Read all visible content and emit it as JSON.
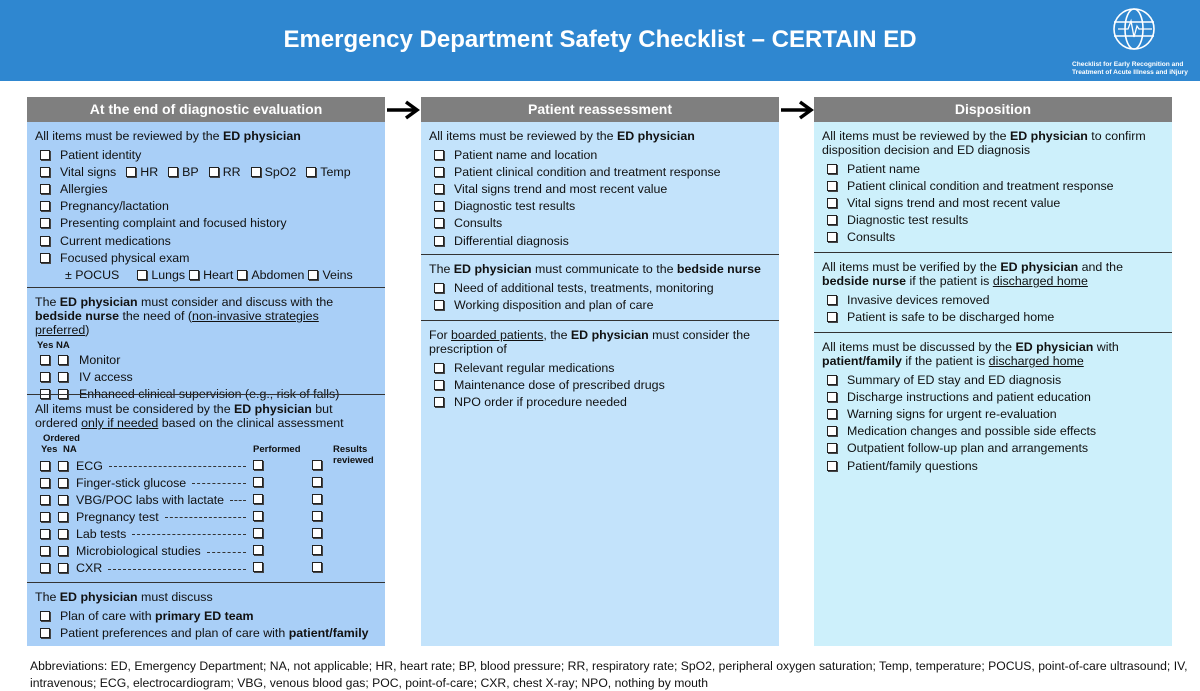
{
  "title": "Emergency Department Safety Checklist – CERTAIN ED",
  "logo": {
    "caption_line1": "Checklist for Early Recognition and",
    "caption_line2": "Treatment of Acute Illness and iNjury"
  },
  "colors": {
    "banner": "#2f87d0",
    "header": "#7f7f7f",
    "col1": "#a9cff7",
    "col2": "#c3e3fb",
    "col3": "#cdf0fb"
  },
  "icons": {
    "arrow": "right-arrow-icon",
    "checkbox": "checkbox-icon",
    "logo": "globe-c-ecg-logo"
  },
  "columns": [
    {
      "title": "At the end of diagnostic evaluation",
      "sections": [
        {
          "intro": [
            {
              "t": "All items must be reviewed by the "
            },
            {
              "t": "ED physician",
              "s": "b"
            }
          ],
          "items": [
            {
              "segs": [
                {
                  "t": "Patient identity"
                }
              ]
            },
            {
              "segs": [
                {
                  "t": "Vital signs"
                }
              ],
              "subs": [
                "HR",
                "BP",
                "RR",
                "SpO2",
                "Temp"
              ]
            },
            {
              "segs": [
                {
                  "t": "Allergies"
                }
              ]
            },
            {
              "segs": [
                {
                  "t": "Pregnancy/lactation"
                }
              ]
            },
            {
              "segs": [
                {
                  "t": "Presenting complaint and focused history"
                }
              ]
            },
            {
              "segs": [
                {
                  "t": "Current medications"
                }
              ]
            },
            {
              "segs": [
                {
                  "t": "Focused physical exam"
                }
              ]
            },
            {
              "nobox": true,
              "segs": [
                {
                  "t": "± POCUS"
                }
              ],
              "subs": [
                "Lungs",
                "Heart",
                "Abdomen",
                "Veins"
              ]
            }
          ]
        },
        {
          "intro": [
            {
              "t": "The "
            },
            {
              "t": "ED physician",
              "s": "b"
            },
            {
              "t": " must consider and discuss with the "
            },
            {
              "t": "bedside nurse",
              "s": "b"
            },
            {
              "t": " the need of ("
            },
            {
              "t": "non-invasive strategies preferred",
              "s": "u"
            },
            {
              "t": ")"
            }
          ],
          "yes_na": [
            "Yes",
            "NA"
          ],
          "double": true,
          "items": [
            {
              "segs": [
                {
                  "t": "Monitor"
                }
              ]
            },
            {
              "segs": [
                {
                  "t": "IV access"
                }
              ]
            },
            {
              "segs": [
                {
                  "t": "Enhanced clinical supervision (e.g., risk of falls)"
                }
              ]
            }
          ]
        },
        {
          "intro": [
            {
              "t": "All items must be considered by the "
            },
            {
              "t": "ED physician",
              "s": "b"
            },
            {
              "t": " but ordered "
            },
            {
              "t": "only if needed",
              "s": "u"
            },
            {
              "t": " based on the clinical assessment"
            }
          ],
          "lab": {
            "ordered": "Ordered",
            "yes": "Yes",
            "na": "NA",
            "performed": "Performed",
            "results": "Results reviewed",
            "rows": [
              "ECG",
              "Finger-stick glucose",
              "VBG/POC labs with lactate",
              "Pregnancy test",
              "Lab tests",
              "Microbiological studies",
              "CXR"
            ]
          }
        },
        {
          "intro": [
            {
              "t": "The "
            },
            {
              "t": "ED physician",
              "s": "b"
            },
            {
              "t": " must discuss"
            }
          ],
          "items": [
            {
              "segs": [
                {
                  "t": "Plan of care with "
                },
                {
                  "t": "primary ED team",
                  "s": "b"
                }
              ]
            },
            {
              "segs": [
                {
                  "t": "Patient preferences and plan of care with "
                },
                {
                  "t": "patient/family",
                  "s": "b"
                }
              ]
            }
          ]
        }
      ]
    },
    {
      "title": "Patient reassessment",
      "sections": [
        {
          "intro": [
            {
              "t": "All items must be reviewed by the "
            },
            {
              "t": "ED physician",
              "s": "b"
            }
          ],
          "items": [
            {
              "segs": [
                {
                  "t": "Patient name and location"
                }
              ]
            },
            {
              "segs": [
                {
                  "t": "Patient clinical condition and treatment response"
                }
              ]
            },
            {
              "segs": [
                {
                  "t": "Vital signs trend and most recent value"
                }
              ]
            },
            {
              "segs": [
                {
                  "t": "Diagnostic test results"
                }
              ]
            },
            {
              "segs": [
                {
                  "t": "Consults"
                }
              ]
            },
            {
              "segs": [
                {
                  "t": "Differential diagnosis"
                }
              ]
            }
          ]
        },
        {
          "intro": [
            {
              "t": "The "
            },
            {
              "t": "ED physician",
              "s": "b"
            },
            {
              "t": " must communicate to the "
            },
            {
              "t": "bedside nurse",
              "s": "b"
            }
          ],
          "items": [
            {
              "segs": [
                {
                  "t": "Need of additional tests, treatments, monitoring"
                }
              ]
            },
            {
              "segs": [
                {
                  "t": "Working disposition and plan of care"
                }
              ]
            }
          ]
        },
        {
          "intro": [
            {
              "t": "For "
            },
            {
              "t": "boarded patients",
              "s": "u"
            },
            {
              "t": ", the "
            },
            {
              "t": "ED physician",
              "s": "b"
            },
            {
              "t": " must consider the prescription of"
            }
          ],
          "items": [
            {
              "segs": [
                {
                  "t": "Relevant regular medications"
                }
              ]
            },
            {
              "segs": [
                {
                  "t": "Maintenance dose of prescribed drugs"
                }
              ]
            },
            {
              "segs": [
                {
                  "t": "NPO order if procedure needed"
                }
              ]
            }
          ]
        }
      ]
    },
    {
      "title": "Disposition",
      "sections": [
        {
          "intro": [
            {
              "t": "All items must be reviewed by the "
            },
            {
              "t": "ED physician",
              "s": "b"
            },
            {
              "t": " to confirm disposition decision and ED diagnosis"
            }
          ],
          "items": [
            {
              "segs": [
                {
                  "t": "Patient name"
                }
              ]
            },
            {
              "segs": [
                {
                  "t": "Patient clinical condition and treatment response"
                }
              ]
            },
            {
              "segs": [
                {
                  "t": "Vital signs trend and most recent value"
                }
              ]
            },
            {
              "segs": [
                {
                  "t": "Diagnostic test results"
                }
              ]
            },
            {
              "segs": [
                {
                  "t": "Consults"
                }
              ]
            }
          ]
        },
        {
          "intro": [
            {
              "t": "All items must be verified by the "
            },
            {
              "t": "ED physician",
              "s": "b"
            },
            {
              "t": " and the "
            },
            {
              "t": "bedside nurse",
              "s": "b"
            },
            {
              "t": " if the patient is "
            },
            {
              "t": "discharged home",
              "s": "u"
            }
          ],
          "items": [
            {
              "segs": [
                {
                  "t": "Invasive devices removed"
                }
              ]
            },
            {
              "segs": [
                {
                  "t": "Patient is safe to be discharged home"
                }
              ]
            }
          ]
        },
        {
          "intro": [
            {
              "t": "All items must be discussed by the "
            },
            {
              "t": "ED physician",
              "s": "b"
            },
            {
              "t": " with "
            },
            {
              "t": "patient/family",
              "s": "b"
            },
            {
              "t": " if the patient is "
            },
            {
              "t": "discharged home",
              "s": "u"
            }
          ],
          "items": [
            {
              "segs": [
                {
                  "t": "Summary of ED stay and ED diagnosis"
                }
              ]
            },
            {
              "segs": [
                {
                  "t": "Discharge instructions and patient education"
                }
              ]
            },
            {
              "segs": [
                {
                  "t": "Warning signs for urgent re-evaluation"
                }
              ]
            },
            {
              "segs": [
                {
                  "t": "Medication changes and possible side effects"
                }
              ]
            },
            {
              "segs": [
                {
                  "t": "Outpatient follow-up plan and arrangements"
                }
              ]
            },
            {
              "segs": [
                {
                  "t": "Patient/family questions"
                }
              ]
            }
          ]
        }
      ]
    }
  ],
  "abbreviations": "Abbreviations: ED, Emergency Department; NA, not applicable; HR, heart rate; BP, blood pressure; RR, respiratory rate; SpO2, peripheral oxygen saturation; Temp, temperature; POCUS, point-of-care ultrasound;  IV, intravenous; ECG, electrocardiogram; VBG, venous blood gas; POC, point-of-care; CXR, chest X-ray; NPO, nothing by mouth"
}
